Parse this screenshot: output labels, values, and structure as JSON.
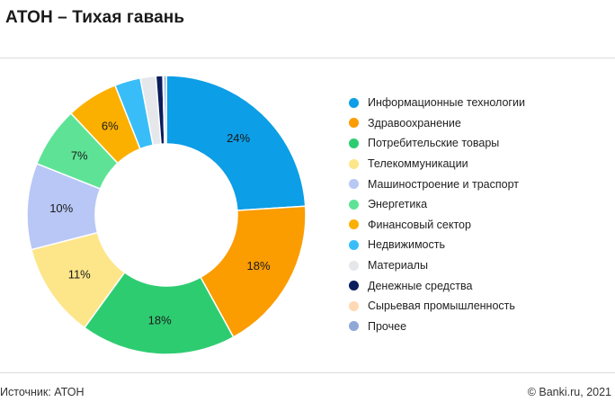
{
  "title": "АТОН – Тихая гавань",
  "footer": {
    "source": "Источник: АТОН",
    "copyright": "© Banki.ru, 2021"
  },
  "chart_data": {
    "type": "pie",
    "subtype": "donut",
    "legend_position": "right",
    "categories": [
      "Информационные технологии",
      "Здравоохранение",
      "Потребительские товары",
      "Телекоммуникации",
      "Машиностроение и траспорт",
      "Энергетика",
      "Финансовый сектор",
      "Недвижимость",
      "Материалы",
      "Денежные средства",
      "Сырьевая промышленность",
      "Прочее"
    ],
    "values": [
      24,
      18,
      18,
      11,
      10,
      7,
      6,
      3,
      1.8,
      0.8,
      0.1,
      0.3
    ],
    "labels": [
      "24%",
      "18%",
      "18%",
      "11%",
      "10%",
      "7%",
      "6%",
      "",
      "",
      "",
      "",
      ""
    ],
    "colors": [
      "#0c9ee6",
      "#fb9c00",
      "#2ecc71",
      "#fde68a",
      "#b8c7f5",
      "#5ee396",
      "#fbb000",
      "#38bdf8",
      "#e5e7eb",
      "#0a1d5c",
      "#ffd9b3",
      "#8fa8d8"
    ]
  }
}
